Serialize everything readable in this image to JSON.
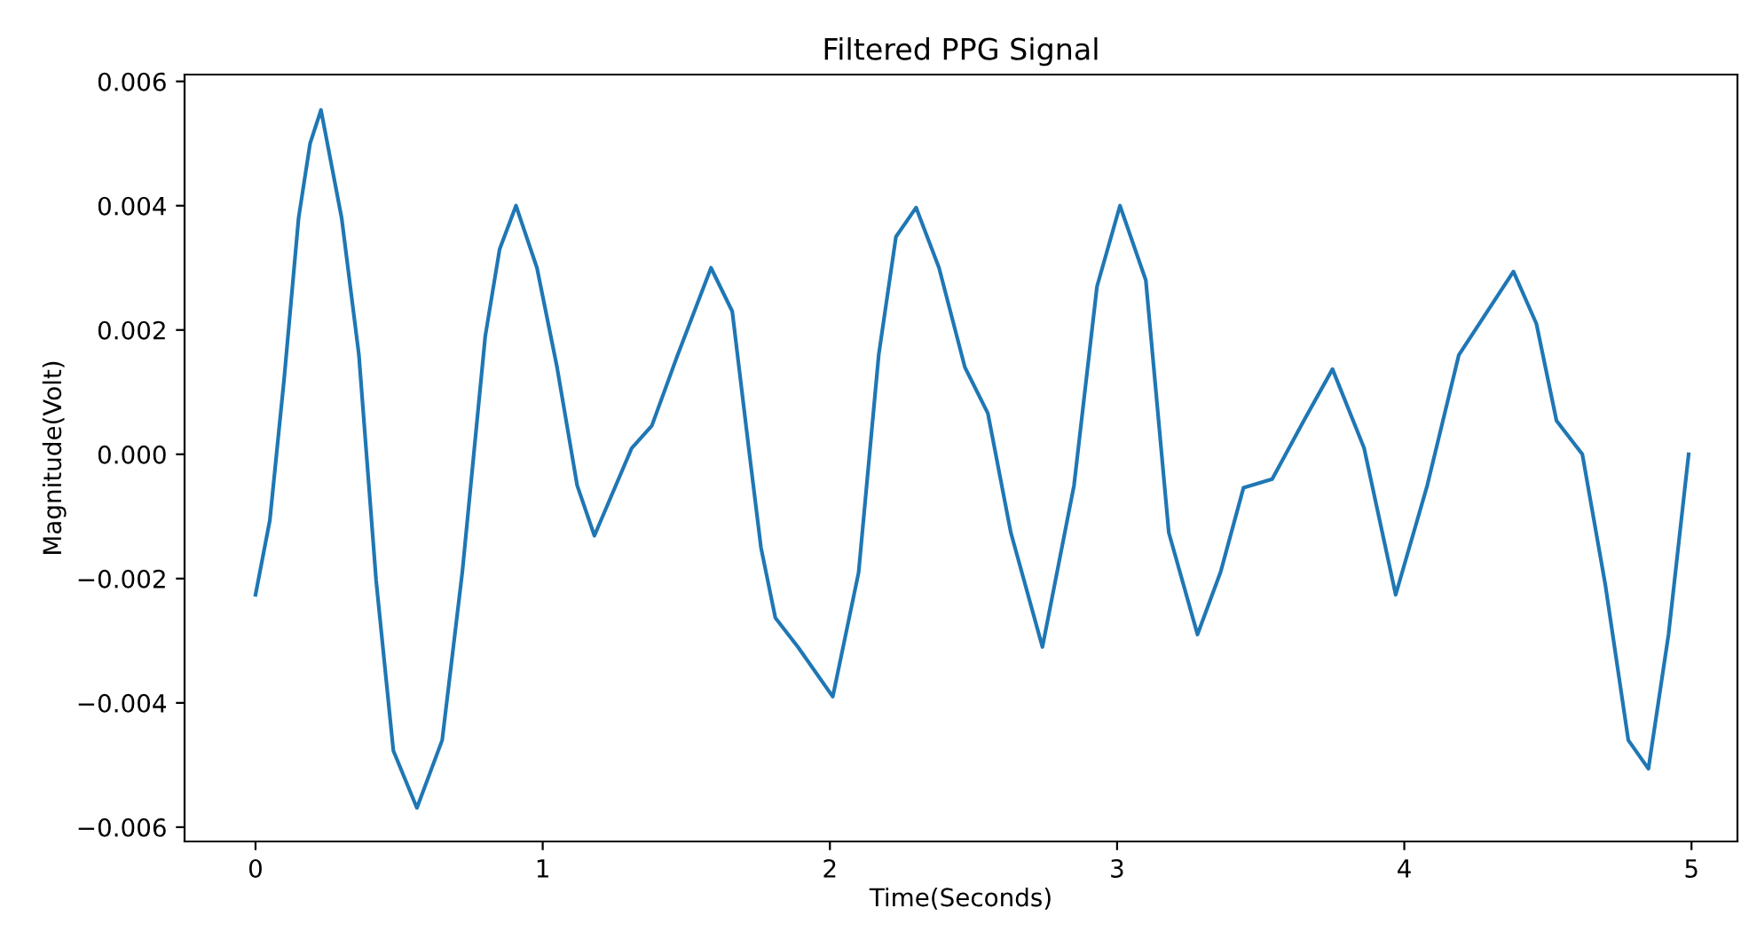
{
  "chart_data": {
    "type": "line",
    "title": "Filtered PPG Signal",
    "xlabel": "Time(Seconds)",
    "ylabel": "Magnitude(Volt)",
    "xlim": [
      -0.247,
      5.16
    ],
    "xticks": [
      0,
      1,
      2,
      3,
      4,
      5
    ],
    "ylim": [
      -0.00623,
      0.00611
    ],
    "yticks": [
      {
        "value": -0.006,
        "label": "−0.006"
      },
      {
        "value": -0.004,
        "label": "−0.004"
      },
      {
        "value": -0.002,
        "label": "−0.002"
      },
      {
        "value": 0,
        "label": "0.000"
      },
      {
        "value": 0.002,
        "label": "0.002"
      },
      {
        "value": 0.004,
        "label": "0.004"
      },
      {
        "value": 0.006,
        "label": "0.006"
      }
    ],
    "grid": false,
    "legend": false,
    "marker": "none",
    "line_style": "solid",
    "series": [
      {
        "color": "#1f77b4",
        "x": [
          0,
          0.05,
          0.1,
          0.15,
          0.19,
          0.228,
          0.3,
          0.36,
          0.42,
          0.48,
          0.562,
          0.65,
          0.72,
          0.8,
          0.85,
          0.907,
          0.98,
          1.05,
          1.12,
          1.18,
          1.31,
          1.38,
          1.47,
          1.586,
          1.66,
          1.72,
          1.76,
          1.81,
          1.89,
          2.01,
          2.1,
          2.17,
          2.23,
          2.3,
          2.38,
          2.47,
          2.55,
          2.63,
          2.74,
          2.85,
          2.93,
          3.01,
          3.1,
          3.18,
          3.28,
          3.36,
          3.44,
          3.54,
          3.65,
          3.75,
          3.86,
          3.97,
          4.08,
          4.19,
          4.38,
          4.46,
          4.53,
          4.62,
          4.7,
          4.78,
          4.85,
          4.92,
          4.99
        ],
        "values": [
          -0.00226,
          -0.00106,
          0.00123,
          0.0038,
          0.005,
          0.00554,
          0.0038,
          0.0016,
          -0.00203,
          -0.00477,
          -0.00569,
          -0.0046,
          -0.0019,
          0.0019,
          0.0033,
          0.004,
          0.003,
          0.0014,
          -0.0005,
          -0.00131,
          0.0001,
          0.00046,
          0.0016,
          0.003,
          0.0023,
          0.0,
          -0.0015,
          -0.00263,
          -0.00311,
          -0.0039,
          -0.0019,
          0.0016,
          0.0035,
          0.00397,
          0.003,
          0.0014,
          0.00066,
          -0.00126,
          -0.0031,
          -0.0005,
          0.0027,
          0.004,
          0.0028,
          -0.00126,
          -0.0029,
          -0.0019,
          -0.00054,
          -0.0004,
          0.00054,
          0.00137,
          0.0001,
          -0.00226,
          -0.0005,
          0.0016,
          0.00294,
          0.0021,
          0.00054,
          0.0,
          -0.0021,
          -0.0046,
          -0.00506,
          -0.0029,
          0
        ]
      }
    ]
  }
}
